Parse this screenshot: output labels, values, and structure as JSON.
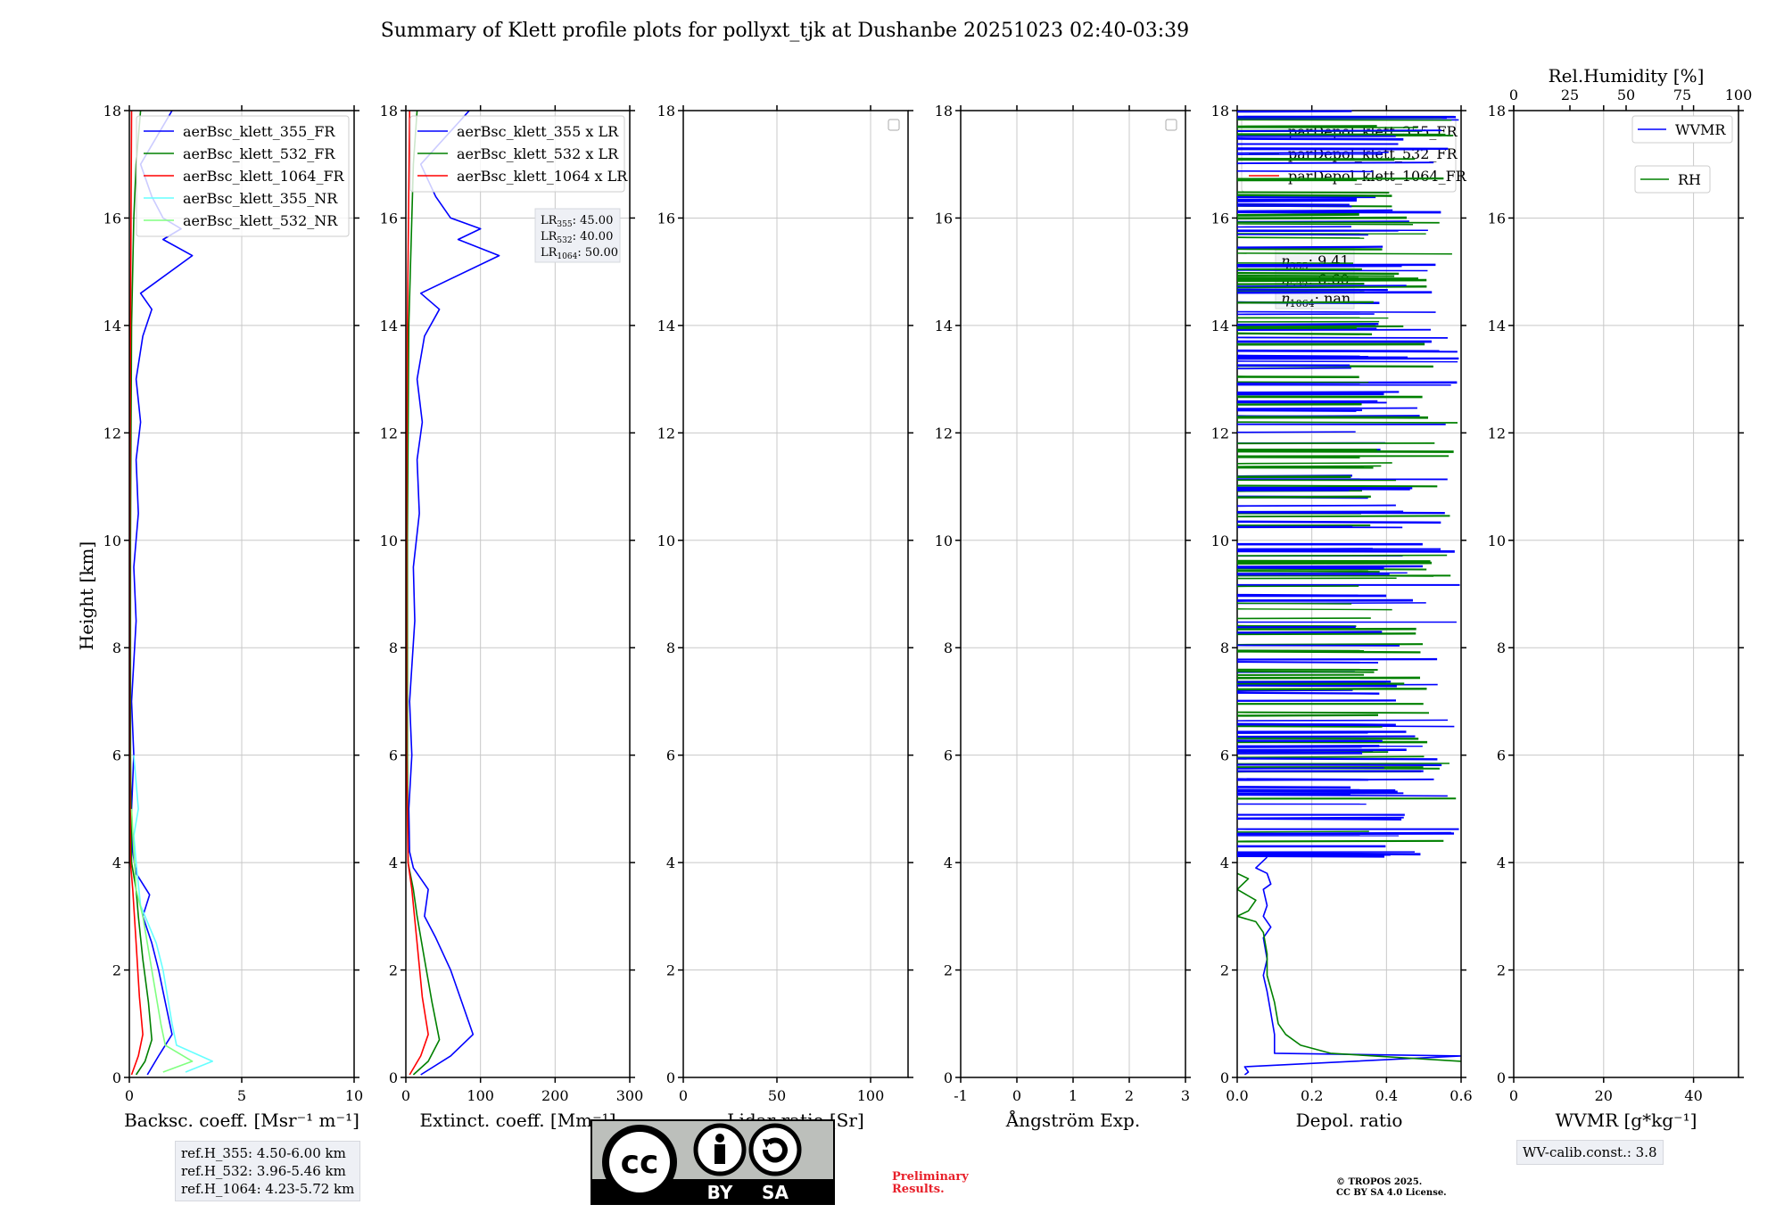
{
  "figure": {
    "title": "Summary of Klett profile plots for pollyxt_tjk at Dushanbe 20251023 02:40-03:39",
    "ylabel": "Height [km]"
  },
  "reference_heights": [
    "ref.H_355: 4.50-6.00 km",
    "ref.H_532: 3.96-5.46 km",
    "ref.H_1064: 4.23-5.72 km"
  ],
  "wv_calib": "WV-calib.const.: 3.8",
  "license": {
    "cc_text": "cc",
    "by_text": "BY",
    "sa_text": "SA",
    "preliminary": [
      "Preliminary",
      "Results."
    ],
    "tropos": [
      "© TROPOS 2025.",
      "CC BY SA 4.0 License."
    ]
  },
  "colors": {
    "blue": "#0000ff",
    "green": "#008000",
    "red": "#ff0000",
    "cyan": "#66ffff",
    "lightgreen": "#80ff80",
    "grid": "#c8c8c8"
  },
  "chart_data": [
    {
      "id": "backscatter",
      "type": "line",
      "xlabel": "Backsc. coeff. [Msr⁻¹ m⁻¹]",
      "xlim": [
        0,
        10
      ],
      "xticks": [
        0,
        5,
        10
      ],
      "ylim": [
        0,
        18
      ],
      "yticks": [
        0,
        2,
        4,
        6,
        8,
        10,
        12,
        14,
        16,
        18
      ],
      "legend": [
        "aerBsc_klett_355_FR",
        "aerBsc_klett_532_FR",
        "aerBsc_klett_1064_FR",
        "aerBsc_klett_355_NR",
        "aerBsc_klett_532_NR"
      ],
      "legend_loc": "upper-right",
      "series": [
        {
          "name": "aerBsc_klett_355_FR",
          "color": "blue",
          "points": [
            [
              0.8,
              0.05
            ],
            [
              1.3,
              0.4
            ],
            [
              1.9,
              0.8
            ],
            [
              1.6,
              1.4
            ],
            [
              1.3,
              2.0
            ],
            [
              1.0,
              2.5
            ],
            [
              0.6,
              3.0
            ],
            [
              0.9,
              3.4
            ],
            [
              0.3,
              3.8
            ],
            [
              0.15,
              4.2
            ],
            [
              0.1,
              5.0
            ],
            [
              0.2,
              6.0
            ],
            [
              0.1,
              7.0
            ],
            [
              0.3,
              8.5
            ],
            [
              0.2,
              9.5
            ],
            [
              0.4,
              10.5
            ],
            [
              0.3,
              11.5
            ],
            [
              0.5,
              12.2
            ],
            [
              0.3,
              13.0
            ],
            [
              0.6,
              13.8
            ],
            [
              1.0,
              14.3
            ],
            [
              0.5,
              14.6
            ],
            [
              2.8,
              15.3
            ],
            [
              1.5,
              15.6
            ],
            [
              2.3,
              15.8
            ],
            [
              1.5,
              16.0
            ],
            [
              1.0,
              16.4
            ],
            [
              0.5,
              17.0
            ],
            [
              1.9,
              18.0
            ]
          ]
        },
        {
          "name": "aerBsc_klett_532_FR",
          "color": "green",
          "points": [
            [
              0.3,
              0.05
            ],
            [
              0.7,
              0.3
            ],
            [
              1.0,
              0.7
            ],
            [
              0.85,
              1.4
            ],
            [
              0.6,
              2.2
            ],
            [
              0.4,
              3.0
            ],
            [
              0.3,
              3.5
            ],
            [
              0.1,
              4.0
            ],
            [
              0.05,
              6.0
            ],
            [
              0.05,
              10.0
            ],
            [
              0.1,
              14.0
            ],
            [
              0.2,
              16.0
            ],
            [
              0.3,
              17.0
            ],
            [
              0.5,
              18.0
            ]
          ]
        },
        {
          "name": "aerBsc_klett_1064_FR",
          "color": "red",
          "points": [
            [
              0.1,
              0.05
            ],
            [
              0.4,
              0.4
            ],
            [
              0.6,
              0.8
            ],
            [
              0.45,
              1.5
            ],
            [
              0.3,
              2.5
            ],
            [
              0.15,
              3.5
            ],
            [
              0.05,
              4.0
            ],
            [
              0.02,
              6.0
            ],
            [
              0.02,
              10.0
            ],
            [
              0.05,
              14.0
            ],
            [
              0.1,
              18.0
            ]
          ]
        },
        {
          "name": "aerBsc_klett_355_NR",
          "color": "cyan",
          "points": [
            [
              2.5,
              0.1
            ],
            [
              3.7,
              0.3
            ],
            [
              2.1,
              0.6
            ],
            [
              1.9,
              1.0
            ],
            [
              1.5,
              2.0
            ],
            [
              1.2,
              2.5
            ],
            [
              0.5,
              3.2
            ],
            [
              0.3,
              4.0
            ],
            [
              0.2,
              4.5
            ],
            [
              0.4,
              5.0
            ],
            [
              0.2,
              6.0
            ]
          ]
        },
        {
          "name": "aerBsc_klett_532_NR",
          "color": "lightgreen",
          "points": [
            [
              1.5,
              0.1
            ],
            [
              2.8,
              0.3
            ],
            [
              1.6,
              0.6
            ],
            [
              1.4,
              1.0
            ],
            [
              1.0,
              2.0
            ],
            [
              0.6,
              3.0
            ],
            [
              0.3,
              3.5
            ],
            [
              0.2,
              4.2
            ],
            [
              0.1,
              5.0
            ]
          ]
        }
      ]
    },
    {
      "id": "extinction",
      "type": "line",
      "xlabel": "Extinct. coeff. [Mm⁻¹]",
      "xlim": [
        0,
        300
      ],
      "xticks": [
        0,
        100,
        200,
        300
      ],
      "ylim": [
        0,
        18
      ],
      "yticks": [
        0,
        2,
        4,
        6,
        8,
        10,
        12,
        14,
        16,
        18
      ],
      "legend": [
        "aerBsc_klett_355 x LR",
        "aerBsc_klett_532 x LR",
        "aerBsc_klett_1064 x LR"
      ],
      "legend_loc": "upper-right",
      "annotation": [
        "45.00",
        "40.00",
        "50.00"
      ],
      "series": [
        {
          "name": "aerBsc_klett_355 x LR",
          "color": "blue",
          "points": [
            [
              20,
              0.05
            ],
            [
              60,
              0.4
            ],
            [
              90,
              0.8
            ],
            [
              75,
              1.4
            ],
            [
              60,
              2.0
            ],
            [
              40,
              2.6
            ],
            [
              25,
              3.0
            ],
            [
              30,
              3.5
            ],
            [
              10,
              3.9
            ],
            [
              5,
              4.2
            ],
            [
              4,
              5.0
            ],
            [
              8,
              6.0
            ],
            [
              5,
              7.0
            ],
            [
              12,
              8.5
            ],
            [
              10,
              9.5
            ],
            [
              18,
              10.5
            ],
            [
              15,
              11.5
            ],
            [
              22,
              12.2
            ],
            [
              15,
              13.0
            ],
            [
              25,
              13.8
            ],
            [
              45,
              14.3
            ],
            [
              20,
              14.6
            ],
            [
              125,
              15.3
            ],
            [
              70,
              15.6
            ],
            [
              100,
              15.8
            ],
            [
              60,
              16.0
            ],
            [
              40,
              16.4
            ],
            [
              20,
              17.0
            ],
            [
              85,
              18.0
            ]
          ]
        },
        {
          "name": "aerBsc_klett_532 x LR",
          "color": "green",
          "points": [
            [
              10,
              0.05
            ],
            [
              30,
              0.3
            ],
            [
              45,
              0.7
            ],
            [
              35,
              1.4
            ],
            [
              25,
              2.2
            ],
            [
              15,
              3.0
            ],
            [
              10,
              3.5
            ],
            [
              3,
              4.0
            ],
            [
              2,
              6.0
            ],
            [
              2,
              10.0
            ],
            [
              4,
              14.0
            ],
            [
              8,
              16.0
            ],
            [
              10,
              17.0
            ],
            [
              15,
              18.0
            ]
          ]
        },
        {
          "name": "aerBsc_klett_1064 x LR",
          "color": "red",
          "points": [
            [
              5,
              0.05
            ],
            [
              20,
              0.4
            ],
            [
              30,
              0.8
            ],
            [
              22,
              1.5
            ],
            [
              15,
              2.5
            ],
            [
              8,
              3.5
            ],
            [
              3,
              4.0
            ],
            [
              1,
              6.0
            ],
            [
              1,
              10.0
            ],
            [
              2,
              14.0
            ],
            [
              5,
              18.0
            ]
          ]
        }
      ]
    },
    {
      "id": "lidar_ratio",
      "type": "line",
      "xlabel": "Lidar ratio [Sr]",
      "xlim": [
        0,
        120
      ],
      "xticks": [
        0,
        50,
        100
      ],
      "ylim": [
        0,
        18
      ],
      "yticks": [
        0,
        2,
        4,
        6,
        8,
        10,
        12,
        14,
        16,
        18
      ],
      "legend": [],
      "series": []
    },
    {
      "id": "angstrom",
      "type": "line",
      "xlabel": "Ångström Exp.",
      "xlim": [
        -1,
        3
      ],
      "xticks": [
        -1,
        0,
        1,
        2,
        3
      ],
      "ylim": [
        0,
        18
      ],
      "yticks": [
        0,
        2,
        4,
        6,
        8,
        10,
        12,
        14,
        16,
        18
      ],
      "legend": [],
      "series": []
    },
    {
      "id": "depol",
      "type": "line",
      "xlabel": "Depol. ratio",
      "xlim": [
        0,
        0.6
      ],
      "xticks": [
        0.0,
        0.2,
        0.4,
        0.6
      ],
      "ylim": [
        0,
        18
      ],
      "yticks": [
        0,
        2,
        4,
        6,
        8,
        10,
        12,
        14,
        16,
        18
      ],
      "legend": [
        "parDepol_klett_355_FR",
        "parDepol_klett_532_FR",
        "parDepol_klett_1064_FR"
      ],
      "legend_loc": "upper-right",
      "annotation": [
        "9.41",
        "6.60",
        "nan"
      ],
      "series": [
        {
          "name": "parDepol_klett_355_FR",
          "color": "blue",
          "points": [
            [
              0.02,
              0.05
            ],
            [
              0.03,
              0.1
            ],
            [
              0.02,
              0.2
            ],
            [
              0.6,
              0.4
            ],
            [
              0.1,
              0.45
            ],
            [
              0.1,
              0.8
            ],
            [
              0.09,
              1.2
            ],
            [
              0.08,
              1.6
            ],
            [
              0.07,
              1.9
            ],
            [
              0.08,
              2.2
            ],
            [
              0.07,
              2.6
            ],
            [
              0.09,
              2.8
            ],
            [
              0.07,
              3.0
            ],
            [
              0.08,
              3.2
            ],
            [
              0.07,
              3.5
            ],
            [
              0.09,
              3.6
            ],
            [
              0.08,
              3.8
            ],
            [
              0.05,
              3.9
            ],
            [
              0.08,
              4.1
            ]
          ]
        },
        {
          "name": "parDepol_klett_532_FR",
          "color": "green",
          "points": [
            [
              0.6,
              0.3
            ],
            [
              0.25,
              0.45
            ],
            [
              0.17,
              0.6
            ],
            [
              0.13,
              0.8
            ],
            [
              0.11,
              1.0
            ],
            [
              0.1,
              1.4
            ],
            [
              0.08,
              1.9
            ],
            [
              0.08,
              2.3
            ],
            [
              0.07,
              2.7
            ],
            [
              0.05,
              2.9
            ],
            [
              0.0,
              3.0
            ],
            [
              0.03,
              3.1
            ],
            [
              0.05,
              3.3
            ],
            [
              0.0,
              3.5
            ],
            [
              0.03,
              3.7
            ],
            [
              0.0,
              3.8
            ]
          ]
        },
        {
          "name": "parDepol_klett_1064_FR",
          "color": "red",
          "points": []
        }
      ]
    },
    {
      "id": "wvmr",
      "type": "line",
      "xlabel": "WVMR [g*kg⁻¹]",
      "xlim": [
        0,
        50
      ],
      "xticks": [
        0,
        20,
        40
      ],
      "top_xlabel": "Rel.Humidity [%]",
      "top_xlim": [
        0,
        100
      ],
      "top_xticks": [
        0,
        25,
        50,
        75,
        100
      ],
      "ylim": [
        0,
        18
      ],
      "yticks": [
        0,
        2,
        4,
        6,
        8,
        10,
        12,
        14,
        16,
        18
      ],
      "legend": [
        "WVMR",
        "RH"
      ],
      "series": [
        {
          "name": "WVMR",
          "color": "blue",
          "points": []
        },
        {
          "name": "RH",
          "color": "green",
          "points": []
        }
      ]
    }
  ]
}
